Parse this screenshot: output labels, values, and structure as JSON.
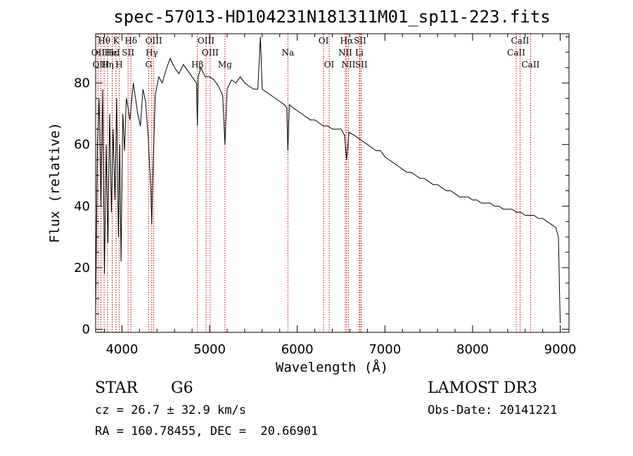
{
  "chart_data": {
    "type": "line",
    "title": "spec-57013-HD104231N181311M01_sp11-223.fits",
    "xlabel": "Wavelength (Å)",
    "ylabel": "Flux (relative)",
    "xlim": [
      3700,
      9100
    ],
    "ylim": [
      -1,
      96
    ],
    "xticks": [
      4000,
      5000,
      6000,
      7000,
      8000,
      9000
    ],
    "yticks": [
      0,
      20,
      40,
      60,
      80
    ],
    "series": [
      {
        "name": "flux",
        "x": [
          3700,
          3720,
          3740,
          3760,
          3780,
          3800,
          3820,
          3840,
          3860,
          3880,
          3900,
          3920,
          3940,
          3960,
          3975,
          3990,
          4010,
          4030,
          4050,
          4070,
          4090,
          4110,
          4130,
          4150,
          4180,
          4210,
          4240,
          4270,
          4300,
          4330,
          4340,
          4350,
          4380,
          4420,
          4460,
          4500,
          4550,
          4600,
          4650,
          4700,
          4750,
          4800,
          4850,
          4861,
          4870,
          4900,
          4950,
          5000,
          5050,
          5100,
          5150,
          5175,
          5200,
          5250,
          5300,
          5350,
          5400,
          5450,
          5500,
          5550,
          5580,
          5600,
          5650,
          5700,
          5750,
          5800,
          5850,
          5880,
          5893,
          5910,
          5950,
          6000,
          6050,
          6100,
          6150,
          6200,
          6250,
          6300,
          6350,
          6400,
          6450,
          6500,
          6540,
          6563,
          6590,
          6650,
          6700,
          6750,
          6800,
          6850,
          6900,
          6950,
          7000,
          7050,
          7100,
          7150,
          7200,
          7250,
          7300,
          7350,
          7400,
          7450,
          7500,
          7550,
          7600,
          7650,
          7700,
          7750,
          7800,
          7850,
          7900,
          7950,
          8000,
          8050,
          8100,
          8150,
          8200,
          8250,
          8300,
          8350,
          8400,
          8450,
          8500,
          8550,
          8600,
          8650,
          8700,
          8750,
          8800,
          8850,
          8900,
          8950,
          8980,
          9000
        ],
        "y": [
          5,
          60,
          75,
          40,
          78,
          18,
          60,
          28,
          70,
          38,
          65,
          42,
          75,
          30,
          60,
          22,
          70,
          58,
          75,
          72,
          68,
          74,
          80,
          76,
          70,
          66,
          78,
          74,
          62,
          45,
          34,
          48,
          76,
          82,
          80,
          84,
          88,
          85,
          83,
          86,
          84,
          82,
          80,
          66,
          82,
          85,
          82,
          82,
          81,
          79,
          76,
          60,
          78,
          81,
          80,
          82,
          80,
          79,
          78,
          78,
          95,
          78,
          77,
          76,
          75,
          74,
          73,
          72,
          58,
          73,
          72,
          71,
          70,
          69,
          68,
          68,
          67,
          66,
          66,
          65,
          65,
          65,
          63,
          55,
          64,
          63,
          62,
          61,
          60,
          59,
          58,
          58,
          56,
          55,
          54,
          53,
          52,
          51,
          51,
          50,
          49,
          49,
          48,
          47,
          47,
          46,
          45,
          45,
          44,
          43,
          43,
          43,
          42,
          42,
          41,
          41,
          41,
          40,
          40,
          39,
          39,
          39,
          38,
          38,
          37,
          37,
          37,
          36,
          36,
          35,
          34,
          33,
          30,
          2
        ]
      }
    ],
    "spectral_lines": [
      {
        "label": "Hθ",
        "x": 3797,
        "row": 1
      },
      {
        "label": "OII",
        "x": 3727,
        "row": 2
      },
      {
        "label": "OIII",
        "x": 3760,
        "row": 3
      },
      {
        "label": "Hε",
        "x": 3889,
        "row": 2
      },
      {
        "label": "Hη",
        "x": 3835,
        "row": 3
      },
      {
        "label": "K",
        "x": 3933,
        "row": 1
      },
      {
        "label": "HeI",
        "x": 3889,
        "row": 2
      },
      {
        "label": "H",
        "x": 3968,
        "row": 3
      },
      {
        "label": "SII",
        "x": 4070,
        "row": 2
      },
      {
        "label": "Hδ",
        "x": 4102,
        "row": 1
      },
      {
        "label": "OIII",
        "x": 4363,
        "row": 1
      },
      {
        "label": "Hγ",
        "x": 4340,
        "row": 2
      },
      {
        "label": "G",
        "x": 4304,
        "row": 3
      },
      {
        "label": "Hβ",
        "x": 4861,
        "row": 3
      },
      {
        "label": "OIII",
        "x": 4959,
        "row": 1
      },
      {
        "label": "OIII",
        "x": 5007,
        "row": 2
      },
      {
        "label": "Mg",
        "x": 5175,
        "row": 3
      },
      {
        "label": "Na",
        "x": 5893,
        "row": 2
      },
      {
        "label": "OI",
        "x": 6300,
        "row": 1
      },
      {
        "label": "OI",
        "x": 6364,
        "row": 3
      },
      {
        "label": "Hα",
        "x": 6563,
        "row": 1
      },
      {
        "label": "NII",
        "x": 6548,
        "row": 2
      },
      {
        "label": "NII",
        "x": 6584,
        "row": 3
      },
      {
        "label": "SII",
        "x": 6716,
        "row": 1
      },
      {
        "label": "Li",
        "x": 6708,
        "row": 2
      },
      {
        "label": "SII",
        "x": 6731,
        "row": 3
      },
      {
        "label": "CaII",
        "x": 8542,
        "row": 1
      },
      {
        "label": "CaII",
        "x": 8498,
        "row": 2
      },
      {
        "label": "CaII",
        "x": 8662,
        "row": 3
      }
    ]
  },
  "info": {
    "object_class": "STAR",
    "subclass": "G6",
    "survey": "LAMOST DR3",
    "redshift_line": "cz = 26.7 ± 32.9 km/s",
    "obs_date": "Obs-Date: 20141221",
    "coords": "RA = 160.78455, DEC =  20.66901"
  },
  "colors": {
    "axis": "#000000",
    "flux": "#000000",
    "spectral_line": "#cc0000"
  }
}
